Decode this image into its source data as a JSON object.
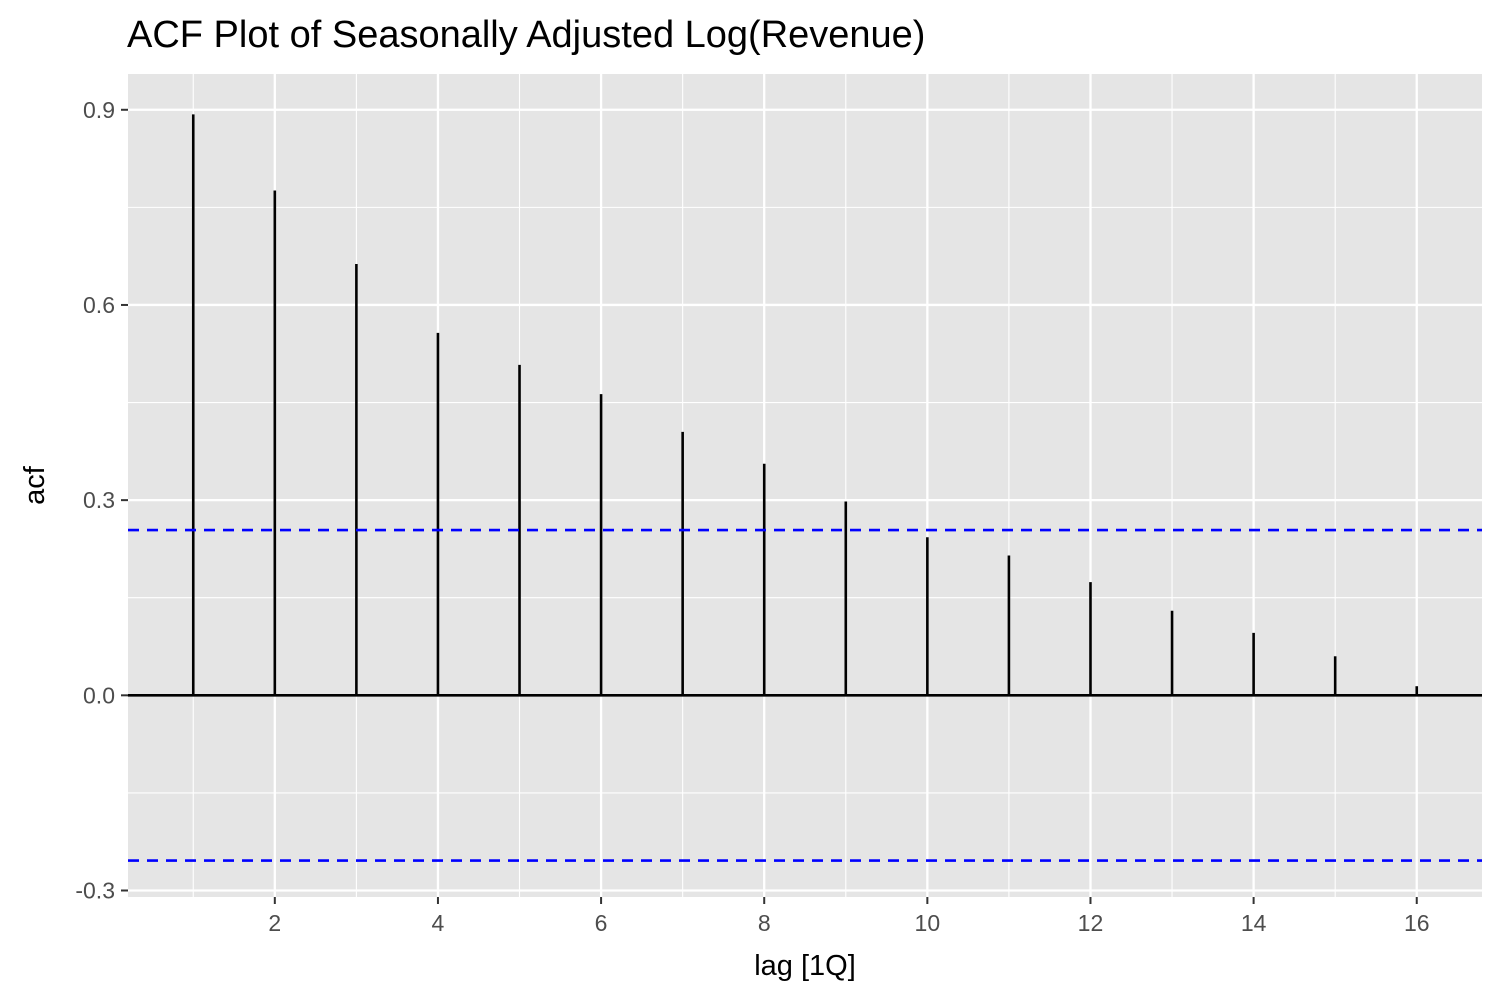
{
  "chart_data": {
    "type": "bar",
    "title": "ACF Plot of Seasonally Adjusted Log(Revenue)",
    "xlabel": "lag [1Q]",
    "ylabel": "acf",
    "x": [
      1,
      2,
      3,
      4,
      5,
      6,
      7,
      8,
      9,
      10,
      11,
      12,
      13,
      14,
      15,
      16
    ],
    "values": [
      0.893,
      0.776,
      0.663,
      0.557,
      0.508,
      0.463,
      0.405,
      0.356,
      0.298,
      0.243,
      0.215,
      0.174,
      0.13,
      0.096,
      0.06,
      0.014
    ],
    "xlim": [
      0.2,
      16.8
    ],
    "ylim": [
      -0.31,
      0.955
    ],
    "x_ticks": [
      2,
      4,
      6,
      8,
      10,
      12,
      14,
      16
    ],
    "x_tick_labels": [
      "2",
      "4",
      "6",
      "8",
      "10",
      "12",
      "14",
      "16"
    ],
    "y_ticks": [
      0.9,
      0.6,
      0.3,
      0.0,
      -0.3
    ],
    "y_tick_labels": [
      "0.9",
      "0.6",
      "0.3",
      "0.0",
      "-0.3"
    ],
    "confidence_bounds": [
      0.254,
      -0.254
    ],
    "grid": true,
    "legend": "none",
    "colors": {
      "panel_background": "#e5e5e5",
      "grid": "#ffffff",
      "bars": "#000000",
      "confidence": "#0000ff",
      "tick_text": "#4d4d4d"
    }
  }
}
